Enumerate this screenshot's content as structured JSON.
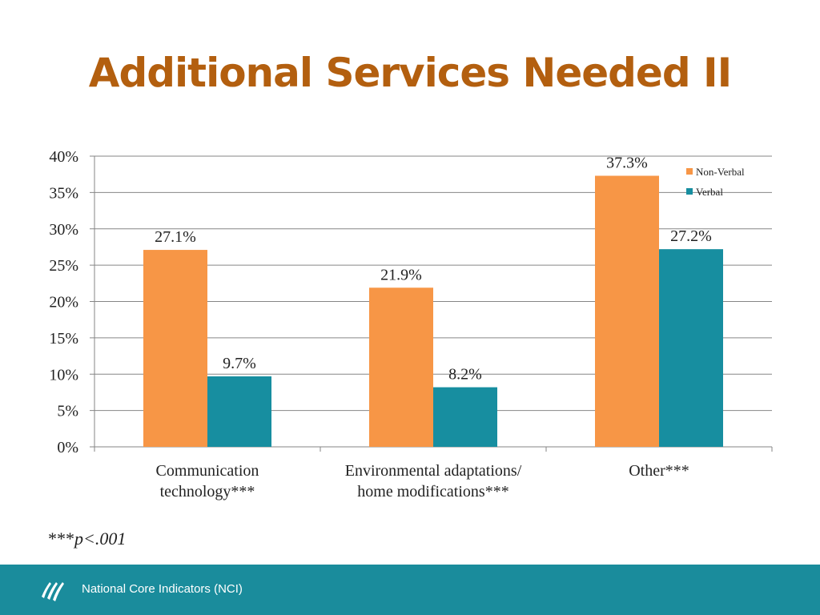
{
  "title": "Additional Services Needed II",
  "colors": {
    "title": "#B35F0F",
    "non_verbal": "#F79646",
    "verbal": "#178EA0",
    "grid": "#868686",
    "text": "#222222",
    "footer_bg": "#1A8C9C"
  },
  "chart_data": {
    "type": "bar",
    "categories": [
      [
        "Communication",
        "technology***"
      ],
      [
        "Environmental adaptations/",
        "home modifications***"
      ],
      [
        "Other***"
      ]
    ],
    "series": [
      {
        "name": "Non-Verbal",
        "values": [
          27.1,
          21.9,
          37.3
        ],
        "labels": [
          "27.1%",
          "21.9%",
          "37.3%"
        ]
      },
      {
        "name": "Verbal",
        "values": [
          9.7,
          8.2,
          27.2
        ],
        "labels": [
          "9.7%",
          "8.2%",
          "27.2%"
        ]
      }
    ],
    "ylim": [
      0,
      40
    ],
    "yticks": [
      0,
      5,
      10,
      15,
      20,
      25,
      30,
      35,
      40
    ],
    "ytick_labels": [
      "0%",
      "5%",
      "10%",
      "15%",
      "20%",
      "25%",
      "30%",
      "35%",
      "40%"
    ],
    "grid": true,
    "legend": "top-right",
    "xlabel": "",
    "ylabel": ""
  },
  "footnote": {
    "stars": "***",
    "text": "p<.001"
  },
  "footer": {
    "label": "National Core Indicators (NCI)",
    "logo_icon": "nci-logo-icon"
  }
}
